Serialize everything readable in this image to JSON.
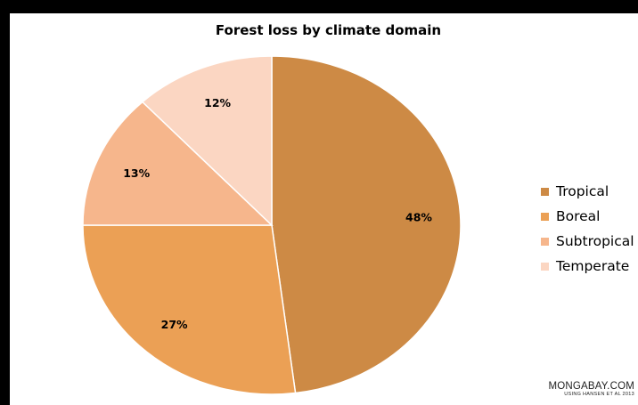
{
  "chart_data": {
    "type": "pie",
    "title": "Forest loss by climate domain",
    "slices": [
      {
        "label": "Tropical",
        "value": 48,
        "display": "48%",
        "color": "#cd8a45"
      },
      {
        "label": "Boreal",
        "value": 27,
        "display": "27%",
        "color": "#eba055"
      },
      {
        "label": "Subtropical",
        "value": 13,
        "display": "13%",
        "color": "#f6b68c"
      },
      {
        "label": "Temperate",
        "value": 12,
        "display": "12%",
        "color": "#fbd6c2"
      }
    ],
    "legend_position": "right",
    "start_angle": "12 o'clock",
    "direction": "clockwise"
  },
  "credit": {
    "source": "MONGABAY.COM",
    "note": "USING HANSEN ET AL 2013"
  }
}
